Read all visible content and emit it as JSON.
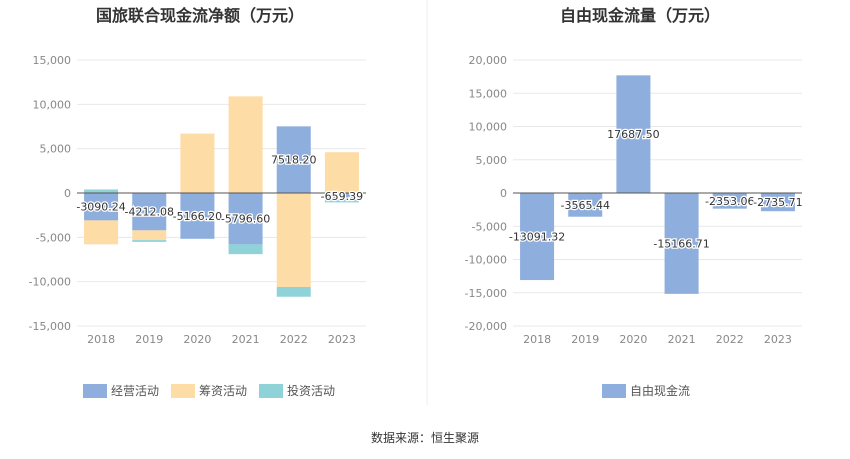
{
  "source_label": "数据来源：恒生聚源",
  "colors": {
    "operating": "#8eaedd",
    "financing": "#fddca6",
    "investing": "#8fd3d9",
    "free_cash_flow": "#8eaedd",
    "grid": "#e8e8e8",
    "axis_text": "#888888",
    "title_text": "#333333",
    "divider": "#eeeeee"
  },
  "chart_data": [
    {
      "type": "bar",
      "stacked": true,
      "title": "国旅联合现金流净额（万元）",
      "categories": [
        "2018",
        "2019",
        "2020",
        "2021",
        "2022",
        "2023"
      ],
      "ylim": [
        -15000,
        15000
      ],
      "yticks": [
        15000,
        10000,
        5000,
        0,
        -5000,
        -10000,
        -15000
      ],
      "ytick_labels": [
        "15,000",
        "10,000",
        "5,000",
        "0",
        "-5,000",
        "-10,000",
        "-15,000"
      ],
      "grid": true,
      "legend_position": "bottom-center",
      "series": [
        {
          "name": "经营活动",
          "key": "operating",
          "values": [
            -3090.24,
            -4212.08,
            -5166.2,
            -5796.6,
            7518.2,
            -659.39
          ],
          "labels": [
            "-3090.24",
            "-4212.08",
            "-5166.20",
            "-5796.60",
            "7518.20",
            "-659.39"
          ]
        },
        {
          "name": "筹资活动",
          "key": "financing",
          "values": [
            -2700,
            -1100,
            6700,
            10900,
            -10600,
            4600
          ]
        },
        {
          "name": "投资活动",
          "key": "investing",
          "values": [
            400,
            -200,
            0,
            -1100,
            -1100,
            -400
          ]
        }
      ]
    },
    {
      "type": "bar",
      "title": "自由现金流量（万元）",
      "categories": [
        "2018",
        "2019",
        "2020",
        "2021",
        "2022",
        "2023"
      ],
      "ylim": [
        -20000,
        20000
      ],
      "yticks": [
        20000,
        15000,
        10000,
        5000,
        0,
        -5000,
        -10000,
        -15000,
        -20000
      ],
      "ytick_labels": [
        "20,000",
        "15,000",
        "10,000",
        "5,000",
        "0",
        "-5,000",
        "-10,000",
        "-15,000",
        "-20,000"
      ],
      "grid": true,
      "legend_position": "bottom-center",
      "series": [
        {
          "name": "自由现金流",
          "key": "free_cash_flow",
          "values": [
            -13091.32,
            -3565.44,
            17687.5,
            -15166.71,
            -2353.06,
            -2735.71
          ],
          "labels": [
            "-13091.32",
            "-3565.44",
            "17687.50",
            "-15166.71",
            "-2353.06",
            "-2735.71"
          ]
        }
      ]
    }
  ]
}
